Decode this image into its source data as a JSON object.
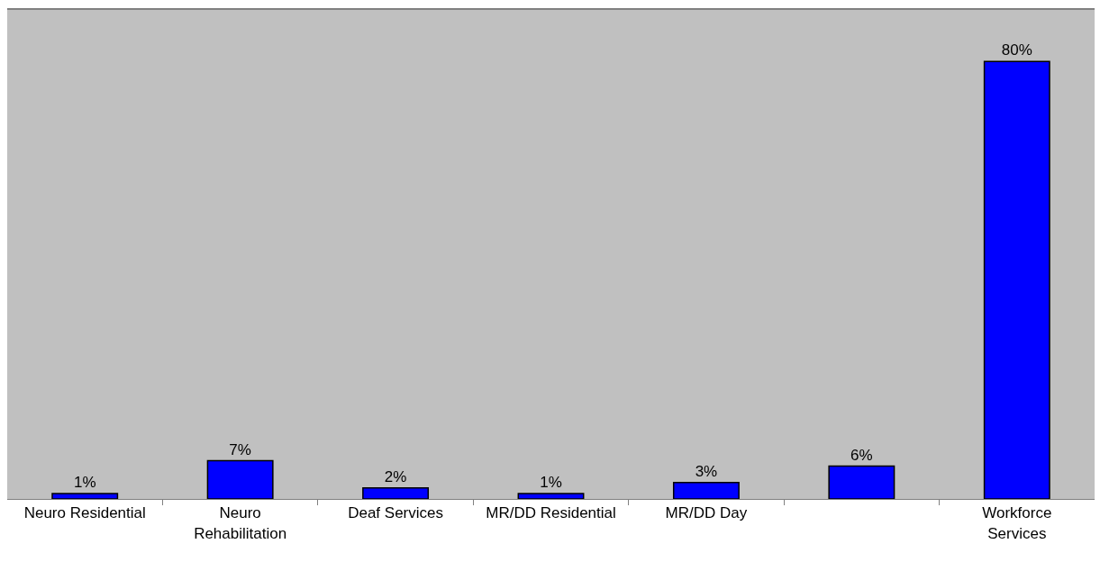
{
  "chart_data": {
    "type": "bar",
    "categories": [
      "Neuro Residential",
      "Neuro Rehabilitation",
      "Deaf Services",
      "MR/DD Residential",
      "MR/DD Day",
      null,
      "Workforce Services"
    ],
    "values": [
      1,
      7,
      2,
      1,
      3,
      6,
      80
    ],
    "value_labels": [
      "1%",
      "7%",
      "2%",
      "1%",
      "3%",
      "6%",
      "80%"
    ],
    "color": "#0000ff",
    "grid": false,
    "legend": false
  }
}
